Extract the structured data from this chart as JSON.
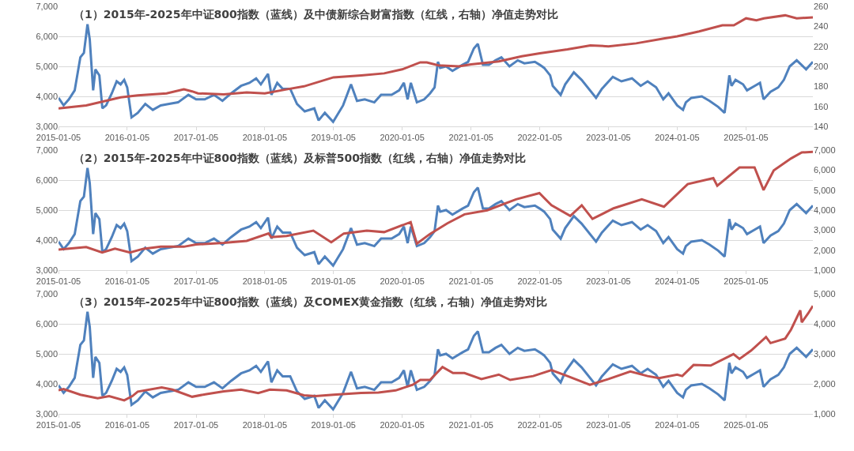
{
  "chart_data": [
    {
      "type": "line",
      "title": "（1）2015年-2025年中证800指数（蓝线）及中债新综合财富指数（红线，右轴）净值走势对比",
      "xlim": [
        "2015-01-05",
        "2025-12-26"
      ],
      "xticks": [
        "2015-01-05",
        "2016-01-05",
        "2017-01-05",
        "2018-01-05",
        "2019-01-05",
        "2020-01-05",
        "2021-01-05",
        "2022-01-05",
        "2023-01-05",
        "2024-01-05",
        "2025-01-05"
      ],
      "ylim": [
        3000,
        7000
      ],
      "yticks": [
        {
          "value": 3000,
          "label": "3,000"
        },
        {
          "value": 4000,
          "label": "4,000"
        },
        {
          "value": 5000,
          "label": "5,000"
        },
        {
          "value": 6000,
          "label": "6,000"
        },
        {
          "value": 7000,
          "label": "7,000"
        }
      ],
      "y2lim": [
        140,
        260
      ],
      "y2ticks": [
        140,
        160,
        180,
        200,
        220,
        240,
        260
      ],
      "grid": "y",
      "line_style": "solid",
      "marker": "none",
      "series": [
        {
          "color": "#4f81bd",
          "x": [
            "2015-01-05",
            "2015-02-01",
            "2015-03-01",
            "2015-04-01",
            "2015-05-01",
            "2015-05-20",
            "2015-06-08",
            "2015-06-20",
            "2015-07-08",
            "2015-07-20",
            "2015-08-10",
            "2015-08-26",
            "2015-09-15",
            "2015-10-15",
            "2015-11-10",
            "2015-12-01",
            "2015-12-20",
            "2016-01-05",
            "2016-01-28",
            "2016-03-01",
            "2016-04-10",
            "2016-05-20",
            "2016-07-01",
            "2016-08-15",
            "2016-10-01",
            "2016-11-25",
            "2017-01-05",
            "2017-02-20",
            "2017-04-10",
            "2017-05-25",
            "2017-07-10",
            "2017-09-01",
            "2017-10-15",
            "2017-11-20",
            "2017-12-15",
            "2018-01-22",
            "2018-02-09",
            "2018-03-12",
            "2018-04-10",
            "2018-05-20",
            "2018-06-25",
            "2018-08-05",
            "2018-09-25",
            "2018-10-18",
            "2018-11-20",
            "2019-01-03",
            "2019-02-25",
            "2019-04-08",
            "2019-05-10",
            "2019-06-20",
            "2019-08-10",
            "2019-09-15",
            "2019-11-10",
            "2019-12-20",
            "2020-01-14",
            "2020-02-03",
            "2020-02-20",
            "2020-03-23",
            "2020-05-01",
            "2020-06-01",
            "2020-06-25",
            "2020-07-13",
            "2020-07-25",
            "2020-08-25",
            "2020-09-28",
            "2020-11-20",
            "2020-12-20",
            "2021-01-20",
            "2021-02-10",
            "2021-03-09",
            "2021-04-10",
            "2021-05-15",
            "2021-06-15",
            "2021-07-28",
            "2021-09-10",
            "2021-10-15",
            "2021-12-10",
            "2022-01-05",
            "2022-01-28",
            "2022-03-01",
            "2022-03-15",
            "2022-04-26",
            "2022-05-20",
            "2022-07-05",
            "2022-08-15",
            "2022-10-31",
            "2022-12-01",
            "2023-01-28",
            "2023-03-15",
            "2023-05-10",
            "2023-06-25",
            "2023-08-01",
            "2023-09-15",
            "2023-10-23",
            "2023-11-20",
            "2024-01-05",
            "2024-02-05",
            "2024-02-20",
            "2024-03-20",
            "2024-05-15",
            "2024-06-25",
            "2024-08-10",
            "2024-09-13",
            "2024-10-08",
            "2024-10-20",
            "2024-11-10",
            "2024-12-20",
            "2025-01-10",
            "2025-02-20",
            "2025-03-20",
            "2025-04-08",
            "2025-05-15",
            "2025-06-25",
            "2025-07-25",
            "2025-08-25",
            "2025-10-01",
            "2025-11-20",
            "2025-12-26"
          ],
          "values": [
            3950,
            3700,
            3900,
            4200,
            5300,
            5450,
            6400,
            5900,
            4200,
            4900,
            4700,
            3600,
            3700,
            4100,
            4500,
            4400,
            4550,
            4300,
            3300,
            3450,
            3750,
            3550,
            3700,
            3750,
            3800,
            4050,
            3900,
            3900,
            4050,
            3850,
            4100,
            4350,
            4450,
            4600,
            4400,
            4750,
            4050,
            4450,
            4250,
            4250,
            3750,
            3500,
            3600,
            3200,
            3450,
            3150,
            3700,
            4400,
            3850,
            3900,
            3800,
            4050,
            4050,
            4200,
            4450,
            3900,
            4450,
            3800,
            3900,
            4100,
            4300,
            5150,
            4950,
            5000,
            4850,
            5050,
            5150,
            5600,
            5750,
            5050,
            5050,
            5200,
            5300,
            5000,
            5200,
            5100,
            5150,
            5050,
            4950,
            4700,
            4350,
            4050,
            4400,
            4800,
            4550,
            3950,
            4250,
            4650,
            4500,
            4600,
            4350,
            4500,
            4300,
            3900,
            4100,
            3700,
            3550,
            3800,
            3950,
            4000,
            3850,
            3650,
            3450,
            4700,
            4350,
            4550,
            4400,
            4200,
            4350,
            4450,
            3900,
            4150,
            4300,
            4550,
            5000,
            5200,
            4900,
            5150
          ]
        },
        {
          "color": "#c0504d",
          "axis": "y2",
          "x": [
            "2015-01-05",
            "2015-06-01",
            "2015-12-01",
            "2016-03-01",
            "2016-08-01",
            "2016-11-01",
            "2016-12-15",
            "2017-01-15",
            "2017-06-01",
            "2017-10-01",
            "2018-01-05",
            "2018-05-01",
            "2018-08-01",
            "2019-01-05",
            "2019-06-01",
            "2019-10-01",
            "2020-01-05",
            "2020-04-10",
            "2020-05-15",
            "2020-07-15",
            "2020-11-01",
            "2021-01-05",
            "2021-06-01",
            "2021-10-01",
            "2022-01-05",
            "2022-06-01",
            "2022-10-01",
            "2023-01-05",
            "2023-06-01",
            "2023-11-01",
            "2024-01-05",
            "2024-05-01",
            "2024-09-01",
            "2024-11-01",
            "2025-01-05",
            "2025-03-01",
            "2025-04-10",
            "2025-08-01",
            "2025-10-01",
            "2025-12-26"
          ],
          "values": [
            158,
            161,
            169,
            171,
            173,
            177,
            175,
            173,
            172,
            174,
            173,
            177,
            180,
            189,
            191,
            193,
            197,
            204,
            204,
            201,
            200,
            202,
            205,
            210,
            213,
            217,
            221,
            220,
            223,
            228,
            230,
            235,
            241,
            241,
            248,
            246,
            248,
            251,
            248,
            249
          ]
        }
      ]
    },
    {
      "type": "line",
      "title": "（2）2015年-2025年中证800指数（蓝线）及标普500指数（红线，右轴）净值走势对比",
      "xlim": [
        "2015-01-05",
        "2025-12-26"
      ],
      "xticks": [
        "2015-01-05",
        "2016-01-05",
        "2017-01-05",
        "2018-01-05",
        "2019-01-05",
        "2020-01-05",
        "2021-01-05",
        "2022-01-05",
        "2023-01-05",
        "2024-01-05",
        "2025-01-05"
      ],
      "ylim": [
        3000,
        7000
      ],
      "yticks": [
        {
          "value": 3000,
          "label": "3,000"
        },
        {
          "value": 4000,
          "label": "4,000"
        },
        {
          "value": 5000,
          "label": "5,000"
        },
        {
          "value": 6000,
          "label": "6,000"
        },
        {
          "value": 7000,
          "label": "7,000"
        }
      ],
      "y2lim": [
        1000,
        7000
      ],
      "y2ticks": [
        {
          "value": 1000,
          "label": "1,000"
        },
        {
          "value": 2000,
          "label": "2,000"
        },
        {
          "value": 3000,
          "label": "3,000"
        },
        {
          "value": 4000,
          "label": "4,000"
        },
        {
          "value": 5000,
          "label": "5,000"
        },
        {
          "value": 6000,
          "label": "6,000"
        },
        {
          "value": 7000,
          "label": "7,000"
        }
      ],
      "grid": "y",
      "line_style": "solid",
      "marker": "none",
      "series": [
        {
          "color": "#4f81bd",
          "x": [
            "2015-01-05",
            "2015-02-01",
            "2015-03-01",
            "2015-04-01",
            "2015-05-01",
            "2015-05-20",
            "2015-06-08",
            "2015-06-20",
            "2015-07-08",
            "2015-07-20",
            "2015-08-10",
            "2015-08-26",
            "2015-09-15",
            "2015-10-15",
            "2015-11-10",
            "2015-12-01",
            "2015-12-20",
            "2016-01-05",
            "2016-01-28",
            "2016-03-01",
            "2016-04-10",
            "2016-05-20",
            "2016-07-01",
            "2016-08-15",
            "2016-10-01",
            "2016-11-25",
            "2017-01-05",
            "2017-02-20",
            "2017-04-10",
            "2017-05-25",
            "2017-07-10",
            "2017-09-01",
            "2017-10-15",
            "2017-11-20",
            "2017-12-15",
            "2018-01-22",
            "2018-02-09",
            "2018-03-12",
            "2018-04-10",
            "2018-05-20",
            "2018-06-25",
            "2018-08-05",
            "2018-09-25",
            "2018-10-18",
            "2018-11-20",
            "2019-01-03",
            "2019-02-25",
            "2019-04-08",
            "2019-05-10",
            "2019-06-20",
            "2019-08-10",
            "2019-09-15",
            "2019-11-10",
            "2019-12-20",
            "2020-01-14",
            "2020-02-03",
            "2020-02-20",
            "2020-03-23",
            "2020-05-01",
            "2020-06-01",
            "2020-06-25",
            "2020-07-13",
            "2020-07-25",
            "2020-08-25",
            "2020-09-28",
            "2020-11-20",
            "2020-12-20",
            "2021-01-20",
            "2021-02-10",
            "2021-03-09",
            "2021-04-10",
            "2021-05-15",
            "2021-06-15",
            "2021-07-28",
            "2021-09-10",
            "2021-10-15",
            "2021-12-10",
            "2022-01-05",
            "2022-01-28",
            "2022-03-01",
            "2022-03-15",
            "2022-04-26",
            "2022-05-20",
            "2022-07-05",
            "2022-08-15",
            "2022-10-31",
            "2022-12-01",
            "2023-01-28",
            "2023-03-15",
            "2023-05-10",
            "2023-06-25",
            "2023-08-01",
            "2023-09-15",
            "2023-10-23",
            "2023-11-20",
            "2024-01-05",
            "2024-02-05",
            "2024-02-20",
            "2024-03-20",
            "2024-05-15",
            "2024-06-25",
            "2024-08-10",
            "2024-09-13",
            "2024-10-08",
            "2024-10-20",
            "2024-11-10",
            "2024-12-20",
            "2025-01-10",
            "2025-02-20",
            "2025-03-20",
            "2025-04-08",
            "2025-05-15",
            "2025-06-25",
            "2025-07-25",
            "2025-08-25",
            "2025-10-01",
            "2025-11-20",
            "2025-12-26"
          ],
          "values": [
            3950,
            3700,
            3900,
            4200,
            5300,
            5450,
            6400,
            5900,
            4200,
            4900,
            4700,
            3600,
            3700,
            4100,
            4500,
            4400,
            4550,
            4300,
            3300,
            3450,
            3750,
            3550,
            3700,
            3750,
            3800,
            4050,
            3900,
            3900,
            4050,
            3850,
            4100,
            4350,
            4450,
            4600,
            4400,
            4750,
            4050,
            4450,
            4250,
            4250,
            3750,
            3500,
            3600,
            3200,
            3450,
            3150,
            3700,
            4400,
            3850,
            3900,
            3800,
            4050,
            4050,
            4200,
            4450,
            3900,
            4450,
            3800,
            3900,
            4100,
            4300,
            5150,
            4950,
            5000,
            4850,
            5050,
            5150,
            5600,
            5750,
            5050,
            5050,
            5200,
            5300,
            5000,
            5200,
            5100,
            5150,
            5050,
            4950,
            4700,
            4350,
            4050,
            4400,
            4800,
            4550,
            3950,
            4250,
            4650,
            4500,
            4600,
            4350,
            4500,
            4300,
            3900,
            4100,
            3700,
            3550,
            3800,
            3950,
            4000,
            3850,
            3650,
            3450,
            4700,
            4350,
            4550,
            4400,
            4200,
            4350,
            4450,
            3900,
            4150,
            4300,
            4550,
            5000,
            5200,
            4900,
            5150
          ]
        },
        {
          "color": "#c0504d",
          "axis": "y2",
          "x": [
            "2015-01-05",
            "2015-06-01",
            "2015-08-25",
            "2015-11-01",
            "2016-01-20",
            "2016-04-01",
            "2016-07-01",
            "2016-11-01",
            "2017-01-05",
            "2017-06-01",
            "2017-10-01",
            "2018-01-25",
            "2018-02-08",
            "2018-05-01",
            "2018-09-20",
            "2018-12-24",
            "2019-03-01",
            "2019-07-01",
            "2019-10-01",
            "2020-02-19",
            "2020-03-23",
            "2020-06-01",
            "2020-09-01",
            "2020-12-01",
            "2021-04-01",
            "2021-09-01",
            "2022-01-03",
            "2022-03-08",
            "2022-06-16",
            "2022-08-16",
            "2022-10-12",
            "2023-02-01",
            "2023-07-01",
            "2023-10-27",
            "2024-03-01",
            "2024-07-15",
            "2024-08-05",
            "2024-12-01",
            "2025-02-19",
            "2025-04-08",
            "2025-06-01",
            "2025-09-01",
            "2025-10-28",
            "2025-12-26"
          ],
          "values": [
            2030,
            2150,
            1880,
            2070,
            1880,
            2070,
            2170,
            2170,
            2280,
            2360,
            2460,
            2830,
            2650,
            2710,
            2970,
            2390,
            2830,
            2970,
            2900,
            3400,
            2320,
            2810,
            3340,
            3790,
            3990,
            4540,
            4850,
            4240,
            3710,
            4240,
            3560,
            4090,
            4540,
            4170,
            5300,
            5600,
            5220,
            6130,
            6130,
            5000,
            5980,
            6580,
            6880,
            6910
          ]
        }
      ]
    },
    {
      "type": "line",
      "title": "（3）2015年-2025年中证800指数（蓝线）及COMEX黄金指数（红线，右轴）净值走势对比",
      "xlim": [
        "2015-01-05",
        "2025-12-26"
      ],
      "xticks": [
        "2015-01-05",
        "2016-01-05",
        "2017-01-05",
        "2018-01-05",
        "2019-01-05",
        "2020-01-05",
        "2021-01-05",
        "2022-01-05",
        "2023-01-05",
        "2024-01-05",
        "2025-01-05"
      ],
      "ylim": [
        3000,
        7000
      ],
      "yticks": [
        {
          "value": 3000,
          "label": "3,000"
        },
        {
          "value": 4000,
          "label": "4,000"
        },
        {
          "value": 5000,
          "label": "5,000"
        },
        {
          "value": 6000,
          "label": "6,000"
        },
        {
          "value": 7000,
          "label": "7,000"
        }
      ],
      "y2lim": [
        1000,
        5000
      ],
      "y2ticks": [
        {
          "value": 1000,
          "label": "1,000"
        },
        {
          "value": 2000,
          "label": "2,000"
        },
        {
          "value": 3000,
          "label": "3,000"
        },
        {
          "value": 4000,
          "label": "4,000"
        },
        {
          "value": 5000,
          "label": "5,000"
        }
      ],
      "grid": "y",
      "line_style": "solid",
      "marker": "none",
      "series": [
        {
          "color": "#4f81bd",
          "x": [
            "2015-01-05",
            "2015-02-01",
            "2015-03-01",
            "2015-04-01",
            "2015-05-01",
            "2015-05-20",
            "2015-06-08",
            "2015-06-20",
            "2015-07-08",
            "2015-07-20",
            "2015-08-10",
            "2015-08-26",
            "2015-09-15",
            "2015-10-15",
            "2015-11-10",
            "2015-12-01",
            "2015-12-20",
            "2016-01-05",
            "2016-01-28",
            "2016-03-01",
            "2016-04-10",
            "2016-05-20",
            "2016-07-01",
            "2016-08-15",
            "2016-10-01",
            "2016-11-25",
            "2017-01-05",
            "2017-02-20",
            "2017-04-10",
            "2017-05-25",
            "2017-07-10",
            "2017-09-01",
            "2017-10-15",
            "2017-11-20",
            "2017-12-15",
            "2018-01-22",
            "2018-02-09",
            "2018-03-12",
            "2018-04-10",
            "2018-05-20",
            "2018-06-25",
            "2018-08-05",
            "2018-09-25",
            "2018-10-18",
            "2018-11-20",
            "2019-01-03",
            "2019-02-25",
            "2019-04-08",
            "2019-05-10",
            "2019-06-20",
            "2019-08-10",
            "2019-09-15",
            "2019-11-10",
            "2019-12-20",
            "2020-01-14",
            "2020-02-03",
            "2020-02-20",
            "2020-03-23",
            "2020-05-01",
            "2020-06-01",
            "2020-06-25",
            "2020-07-13",
            "2020-07-25",
            "2020-08-25",
            "2020-09-28",
            "2020-11-20",
            "2020-12-20",
            "2021-01-20",
            "2021-02-10",
            "2021-03-09",
            "2021-04-10",
            "2021-05-15",
            "2021-06-15",
            "2021-07-28",
            "2021-09-10",
            "2021-10-15",
            "2021-12-10",
            "2022-01-05",
            "2022-01-28",
            "2022-03-01",
            "2022-03-15",
            "2022-04-26",
            "2022-05-20",
            "2022-07-05",
            "2022-08-15",
            "2022-10-31",
            "2022-12-01",
            "2023-01-28",
            "2023-03-15",
            "2023-05-10",
            "2023-06-25",
            "2023-08-01",
            "2023-09-15",
            "2023-10-23",
            "2023-11-20",
            "2024-01-05",
            "2024-02-05",
            "2024-02-20",
            "2024-03-20",
            "2024-05-15",
            "2024-06-25",
            "2024-08-10",
            "2024-09-13",
            "2024-10-08",
            "2024-10-20",
            "2024-11-10",
            "2024-12-20",
            "2025-01-10",
            "2025-02-20",
            "2025-03-20",
            "2025-04-08",
            "2025-05-15",
            "2025-06-25",
            "2025-07-25",
            "2025-08-25",
            "2025-10-01",
            "2025-11-20",
            "2025-12-26"
          ],
          "values": [
            3950,
            3700,
            3900,
            4200,
            5300,
            5450,
            6400,
            5900,
            4200,
            4900,
            4700,
            3600,
            3700,
            4100,
            4500,
            4400,
            4550,
            4300,
            3300,
            3450,
            3750,
            3550,
            3700,
            3750,
            3800,
            4050,
            3900,
            3900,
            4050,
            3850,
            4100,
            4350,
            4450,
            4600,
            4400,
            4750,
            4050,
            4450,
            4250,
            4250,
            3750,
            3500,
            3600,
            3200,
            3450,
            3150,
            3700,
            4400,
            3850,
            3900,
            3800,
            4050,
            4050,
            4200,
            4450,
            3900,
            4450,
            3800,
            3900,
            4100,
            4300,
            5150,
            4950,
            5000,
            4850,
            5050,
            5150,
            5600,
            5750,
            5050,
            5050,
            5200,
            5300,
            5000,
            5200,
            5100,
            5150,
            5050,
            4950,
            4700,
            4350,
            4050,
            4400,
            4800,
            4550,
            3950,
            4250,
            4650,
            4500,
            4600,
            4350,
            4500,
            4300,
            3900,
            4100,
            3700,
            3550,
            3800,
            3950,
            4000,
            3850,
            3650,
            3450,
            4700,
            4350,
            4550,
            4400,
            4200,
            4350,
            4450,
            3900,
            4150,
            4300,
            4550,
            5000,
            5200,
            4900,
            5150
          ]
        },
        {
          "color": "#c0504d",
          "axis": "y2",
          "x": [
            "2015-01-05",
            "2015-02-01",
            "2015-05-01",
            "2015-08-01",
            "2015-10-01",
            "2015-12-20",
            "2016-02-01",
            "2016-03-01",
            "2016-07-06",
            "2016-09-01",
            "2016-12-15",
            "2017-03-01",
            "2017-06-01",
            "2017-09-01",
            "2017-12-01",
            "2018-02-01",
            "2018-05-01",
            "2018-08-01",
            "2018-10-01",
            "2019-01-05",
            "2019-06-01",
            "2019-09-01",
            "2019-12-01",
            "2020-03-01",
            "2020-04-10",
            "2020-06-01",
            "2020-08-06",
            "2020-10-01",
            "2020-12-01",
            "2021-03-01",
            "2021-06-01",
            "2021-08-01",
            "2021-12-01",
            "2022-03-08",
            "2022-06-01",
            "2022-09-28",
            "2023-01-05",
            "2023-05-01",
            "2023-08-01",
            "2023-10-01",
            "2024-01-05",
            "2024-02-01",
            "2024-04-01",
            "2024-07-01",
            "2024-10-30",
            "2024-12-01",
            "2025-02-01",
            "2025-04-21",
            "2025-05-15",
            "2025-08-01",
            "2025-09-01",
            "2025-10-20",
            "2025-10-28",
            "2025-12-01",
            "2025-12-26"
          ],
          "values": [
            1790,
            1830,
            1640,
            1520,
            1590,
            1450,
            1590,
            1740,
            1880,
            1810,
            1570,
            1660,
            1750,
            1810,
            1690,
            1810,
            1780,
            1620,
            1590,
            1640,
            1700,
            1710,
            1780,
            1970,
            2130,
            2130,
            2560,
            2360,
            2360,
            2160,
            2310,
            2130,
            2260,
            2460,
            2260,
            1970,
            2160,
            2410,
            2260,
            2190,
            2310,
            2260,
            2630,
            2610,
            2990,
            2830,
            3110,
            3560,
            3360,
            3510,
            3810,
            4450,
            4050,
            4350,
            4600
          ]
        }
      ]
    }
  ]
}
